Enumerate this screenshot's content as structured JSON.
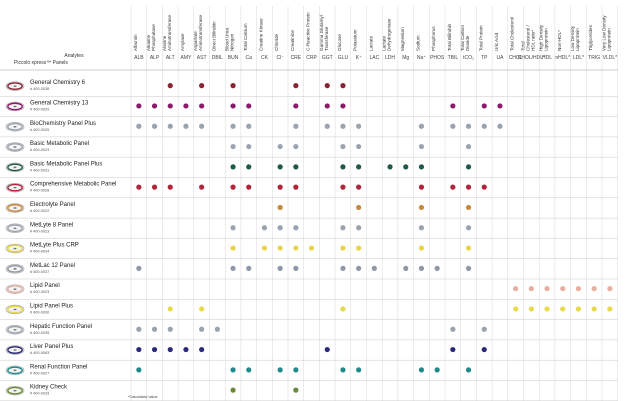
{
  "title": "Piccolo xpress™ Panels",
  "analytes_label": "Analytes",
  "footnote": "*Calculated value",
  "colors": {
    "grid": "#d8d8d8",
    "divider": "#bdbdbd",
    "header_line": "#999999"
  },
  "analytes": [
    {
      "full": "Albumin",
      "abbr": "ALB"
    },
    {
      "full": "Alkaline Phosphatase",
      "abbr": "ALP"
    },
    {
      "full": "Alanine Aminotransferase",
      "abbr": "ALT"
    },
    {
      "full": "Amylase",
      "abbr": "AMY"
    },
    {
      "full": "Aspartate Aminotransferase",
      "abbr": "AST"
    },
    {
      "full": "Direct Bilirubin",
      "abbr": "DBIL"
    },
    {
      "full": "Blood Urea Nitrogen",
      "abbr": "BUN"
    },
    {
      "full": "Total Calcium",
      "abbr": "Ca"
    },
    {
      "full": "Creatine Kinase",
      "abbr": "CK"
    },
    {
      "full": "Chloride",
      "abbr": "Cl⁻"
    },
    {
      "full": "Creatinine",
      "abbr": "CRE"
    },
    {
      "full": "C-Reactive Protein",
      "abbr": "CRP"
    },
    {
      "full": "Gamma Glutamyl Transferase",
      "abbr": "GGT"
    },
    {
      "full": "Glucose",
      "abbr": "GLU"
    },
    {
      "full": "Potassium",
      "abbr": "K⁺"
    },
    {
      "full": "Lactate",
      "abbr": "LAC"
    },
    {
      "full": "Lactate Dehydrogenase",
      "abbr": "LDH"
    },
    {
      "full": "Magnesium",
      "abbr": "Mg"
    },
    {
      "full": "Sodium",
      "abbr": "Na⁺"
    },
    {
      "full": "Phosphorus",
      "abbr": "PHOS"
    },
    {
      "full": "Total Bilirubin",
      "abbr": "TBIL"
    },
    {
      "full": "Total Carbon Dioxide",
      "abbr": "tCO₂"
    },
    {
      "full": "Total Protein",
      "abbr": "TP"
    },
    {
      "full": "Uric Acid",
      "abbr": "UA"
    },
    {
      "full": "Total Cholesterol",
      "abbr": "CHOL"
    },
    {
      "full": "Total Cholesterol / HDL ratio*",
      "abbr": "CHOL/HDL*"
    },
    {
      "full": "High Density Lipoprotein",
      "abbr": "HDL"
    },
    {
      "full": "Non-HDL*",
      "abbr": "nHDL*"
    },
    {
      "full": "Low Density Lipoprotein",
      "abbr": "LDL*"
    },
    {
      "full": "Triglycerides",
      "abbr": "TRIG"
    },
    {
      "full": "Very Low Density Lipoprotein",
      "abbr": "VLDL*"
    }
  ],
  "panels": [
    {
      "name": "General Chemistry 6",
      "number": "# 400-0036",
      "color": "#8b2232",
      "analytes": [
        "ALT",
        "AST",
        "BUN",
        "CRE",
        "GGT",
        "GLU"
      ]
    },
    {
      "name": "General Chemistry 13",
      "number": "# 400-0029",
      "color": "#8b1a6b",
      "analytes": [
        "ALB",
        "ALP",
        "ALT",
        "AMY",
        "AST",
        "BUN",
        "Ca",
        "CRE",
        "GGT",
        "GLU",
        "TBIL",
        "TP",
        "UA"
      ]
    },
    {
      "name": "BioChemistry Panel Plus",
      "number": "# 400-0025",
      "color": "#9ba3b0",
      "analytes": [
        "ALB",
        "ALP",
        "ALT",
        "AMY",
        "AST",
        "BUN",
        "Ca",
        "CRE",
        "GGT",
        "GLU",
        "K⁺",
        "Na⁺",
        "TBIL",
        "tCO₂",
        "TP",
        "UA"
      ]
    },
    {
      "name": "Basic Metabolic Panel",
      "number": "# 400-0024",
      "color": "#9ba3b0",
      "analytes": [
        "BUN",
        "Ca",
        "Cl⁻",
        "CRE",
        "GLU",
        "K⁺",
        "Na⁺",
        "tCO₂"
      ]
    },
    {
      "name": "Basic Metabolic Panel Plus",
      "number": "# 400-0031",
      "color": "#1e5a4c",
      "analytes": [
        "BUN",
        "Ca",
        "Cl⁻",
        "CRE",
        "GLU",
        "K⁺",
        "LDH",
        "Mg",
        "Na⁺",
        "tCO₂"
      ]
    },
    {
      "name": "Comprehensive Metabolic Panel",
      "number": "# 400-0028",
      "color": "#b2233c",
      "analytes": [
        "ALB",
        "ALP",
        "ALT",
        "AST",
        "BUN",
        "Ca",
        "Cl⁻",
        "CRE",
        "GLU",
        "K⁺",
        "Na⁺",
        "TBIL",
        "tCO₂",
        "TP"
      ]
    },
    {
      "name": "Electrolyte Panel",
      "number": "# 400-0022",
      "color": "#c9883a",
      "analytes": [
        "Cl⁻",
        "K⁺",
        "Na⁺",
        "tCO₂"
      ]
    },
    {
      "name": "MetLyte 8 Panel",
      "number": "# 400-0023",
      "color": "#9ba3b0",
      "analytes": [
        "BUN",
        "CK",
        "Cl⁻",
        "CRE",
        "GLU",
        "K⁺",
        "Na⁺",
        "tCO₂"
      ]
    },
    {
      "name": "MetLyte Plus CRP",
      "number": "# 400-0034",
      "color": "#e8d44a",
      "analytes": [
        "BUN",
        "CK",
        "Cl⁻",
        "CRE",
        "CRP",
        "GLU",
        "K⁺",
        "Na⁺",
        "tCO₂"
      ]
    },
    {
      "name": "MetLac 12 Panel",
      "number": "# 400-0037",
      "color": "#8f98a8",
      "analytes": [
        "ALB",
        "BUN",
        "Ca",
        "Cl⁻",
        "CRE",
        "GLU",
        "K⁺",
        "LAC",
        "Mg",
        "Na⁺",
        "PHOS",
        "tCO₂"
      ]
    },
    {
      "name": "Lipid Panel",
      "number": "# 400-0023",
      "color": "#e8b0a0",
      "analytes": [
        "CHOL",
        "CHOL/HDL*",
        "HDL",
        "nHDL*",
        "LDL*",
        "TRIG",
        "VLDL*"
      ]
    },
    {
      "name": "Lipid Panel Plus",
      "number": "# 400-0030",
      "color": "#e8d84a",
      "analytes": [
        "ALT",
        "AST",
        "GLU",
        "CHOL",
        "CHOL/HDL*",
        "HDL",
        "nHDL*",
        "LDL*",
        "TRIG",
        "VLDL*"
      ]
    },
    {
      "name": "Hepatic Function Panel",
      "number": "# 400-0035",
      "color": "#9ba3b0",
      "analytes": [
        "ALB",
        "ALP",
        "ALT",
        "AST",
        "DBIL",
        "TBIL",
        "TP"
      ]
    },
    {
      "name": "Liver Panel Plus",
      "number": "# 400-0063",
      "color": "#2a2a7a",
      "analytes": [
        "ALB",
        "ALP",
        "ALT",
        "AMY",
        "AST",
        "GGT",
        "TBIL",
        "TP"
      ]
    },
    {
      "name": "Renal Function Panel",
      "number": "# 400-0027",
      "color": "#1e8a8a",
      "analytes": [
        "ALB",
        "BUN",
        "Ca",
        "Cl⁻",
        "CRE",
        "GLU",
        "K⁺",
        "Na⁺",
        "PHOS",
        "tCO₂"
      ]
    },
    {
      "name": "Kidney Check",
      "number": "# 400-0033",
      "color": "#6a8a3a",
      "analytes": [
        "BUN",
        "CRE"
      ]
    }
  ]
}
